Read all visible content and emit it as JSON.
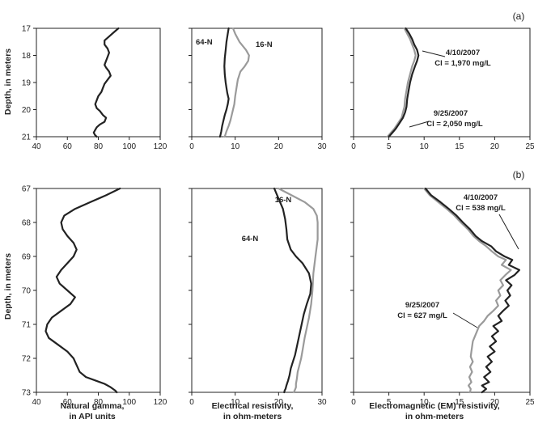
{
  "chart_data": [
    {
      "type": "line",
      "section": "(a)",
      "ylabel": "Depth, in meters",
      "ylim": [
        17,
        21
      ],
      "yticks": [
        "17",
        "18",
        "19",
        "20",
        "21"
      ],
      "xlim": [
        40,
        120
      ],
      "xticks": [
        "40",
        "60",
        "80",
        "100",
        "120"
      ],
      "series": [
        {
          "color": "#222222",
          "x": [
            93,
            90,
            87,
            84,
            84,
            86,
            87,
            86,
            85,
            84,
            85,
            87,
            88,
            86,
            84,
            83,
            82,
            80,
            79,
            78,
            79,
            81,
            83,
            85,
            84,
            81,
            79,
            78,
            77,
            78,
            79
          ],
          "y": [
            17.0,
            17.15,
            17.3,
            17.45,
            17.6,
            17.75,
            17.9,
            18.05,
            18.2,
            18.35,
            18.45,
            18.6,
            18.75,
            18.9,
            19.05,
            19.2,
            19.35,
            19.5,
            19.65,
            19.8,
            19.95,
            20.05,
            20.2,
            20.3,
            20.45,
            20.55,
            20.65,
            20.75,
            20.85,
            20.95,
            21.0
          ]
        }
      ]
    },
    {
      "type": "line",
      "section": "(a)",
      "ylim": [
        17,
        21
      ],
      "xlim": [
        0,
        30
      ],
      "xticks": [
        "0",
        "10",
        "20",
        "30"
      ],
      "series": [
        {
          "name": "64-N",
          "color": "#222222",
          "x": [
            8.5,
            8.3,
            8.0,
            7.8,
            7.6,
            7.5,
            7.6,
            7.8,
            8.0,
            8.2,
            8.5,
            8.3,
            8.0,
            7.6,
            7.3,
            7.0,
            6.8,
            6.6,
            6.5
          ],
          "y": [
            17.0,
            17.2,
            17.5,
            17.8,
            18.1,
            18.4,
            18.7,
            19.0,
            19.2,
            19.4,
            19.6,
            19.8,
            20.0,
            20.2,
            20.4,
            20.6,
            20.8,
            20.95,
            21.0
          ]
        },
        {
          "name": "16-N",
          "color": "#9a9a9a",
          "x": [
            9.5,
            10.0,
            11.0,
            12.5,
            13.2,
            13.0,
            12.2,
            11.2,
            10.6,
            10.3,
            10.0,
            9.8,
            9.5,
            9.2,
            8.9,
            8.5,
            8.0,
            7.7,
            7.5
          ],
          "y": [
            17.0,
            17.2,
            17.5,
            17.8,
            18.0,
            18.2,
            18.4,
            18.6,
            18.9,
            19.2,
            19.5,
            19.8,
            20.0,
            20.2,
            20.4,
            20.6,
            20.8,
            20.95,
            21.0
          ]
        }
      ]
    },
    {
      "type": "line",
      "section": "(a)",
      "ylim": [
        17,
        21
      ],
      "xlim": [
        0,
        25
      ],
      "xticks": [
        "0",
        "5",
        "10",
        "15",
        "20",
        "25"
      ],
      "series": [
        {
          "name": "4/10/2007",
          "color": "#222222",
          "x": [
            7.4,
            7.9,
            8.3,
            8.6,
            9.0,
            9.2,
            9.0,
            8.7,
            8.3,
            8.0,
            7.8,
            7.6,
            7.5,
            7.3,
            7.0,
            6.5,
            6.0,
            5.5,
            5.0
          ],
          "y": [
            17.0,
            17.2,
            17.4,
            17.6,
            17.8,
            18.0,
            18.2,
            18.4,
            18.7,
            19.0,
            19.3,
            19.6,
            19.9,
            20.1,
            20.3,
            20.5,
            20.7,
            20.85,
            21.0
          ]
        },
        {
          "name": "9/25/2007",
          "color": "#9a9a9a",
          "x": [
            7.2,
            7.6,
            8.0,
            8.3,
            8.6,
            8.8,
            8.6,
            8.3,
            8.0,
            7.7,
            7.5,
            7.3,
            7.2,
            7.0,
            6.8,
            6.3,
            5.8,
            5.3,
            4.8
          ],
          "y": [
            17.0,
            17.2,
            17.4,
            17.6,
            17.8,
            18.0,
            18.2,
            18.4,
            18.7,
            19.0,
            19.3,
            19.6,
            19.9,
            20.1,
            20.3,
            20.5,
            20.7,
            20.85,
            21.0
          ]
        }
      ]
    },
    {
      "type": "line",
      "section": "(b)",
      "ylabel": "Depth, in meters",
      "ylim": [
        67,
        73
      ],
      "yticks": [
        "67",
        "68",
        "69",
        "70",
        "71",
        "72",
        "73"
      ],
      "xlim": [
        40,
        120
      ],
      "xticks": [
        "40",
        "60",
        "80",
        "100",
        "120"
      ],
      "xlabel": "Natural gamma, in API units",
      "series": [
        {
          "color": "#222222",
          "x": [
            94,
            85,
            75,
            65,
            58,
            56,
            57,
            60,
            64,
            66,
            64,
            60,
            56,
            53,
            55,
            60,
            65,
            62,
            56,
            50,
            47,
            46,
            48,
            54,
            60,
            64,
            66,
            68,
            72,
            78,
            84,
            88,
            91,
            92
          ],
          "y": [
            67.0,
            67.2,
            67.4,
            67.6,
            67.8,
            68.0,
            68.2,
            68.4,
            68.6,
            68.8,
            69.0,
            69.2,
            69.4,
            69.6,
            69.8,
            70.0,
            70.2,
            70.4,
            70.6,
            70.8,
            71.0,
            71.2,
            71.4,
            71.6,
            71.8,
            72.0,
            72.2,
            72.4,
            72.55,
            72.65,
            72.75,
            72.85,
            72.95,
            73.0
          ]
        }
      ]
    },
    {
      "type": "line",
      "section": "(b)",
      "ylim": [
        67,
        73
      ],
      "xlim": [
        0,
        30
      ],
      "xticks": [
        "0",
        "10",
        "20",
        "30"
      ],
      "xlabel": "Electrical resistivity, in ohm-meters",
      "series": [
        {
          "name": "64-N",
          "color": "#222222",
          "x": [
            19,
            20,
            21,
            21.5,
            21.8,
            22,
            22.8,
            24,
            25.5,
            27,
            27.5,
            27.3,
            26.5,
            25.8,
            25.3,
            24.8,
            24.3,
            23.8,
            23.3,
            22.8,
            22.5,
            22.2,
            21.8,
            21.6,
            21.4,
            21.3
          ],
          "y": [
            67.0,
            67.3,
            67.6,
            67.9,
            68.2,
            68.5,
            68.8,
            69.0,
            69.2,
            69.5,
            69.8,
            70.1,
            70.4,
            70.7,
            71.0,
            71.3,
            71.6,
            71.9,
            72.1,
            72.3,
            72.5,
            72.65,
            72.8,
            72.9,
            72.95,
            73.0
          ]
        },
        {
          "name": "16-N",
          "color": "#9a9a9a",
          "x": [
            20,
            23,
            26,
            28,
            28.8,
            29,
            29,
            28.5,
            28,
            27.8,
            27.5,
            27,
            26.5,
            26,
            25.6,
            25.2,
            24.8,
            24.4,
            24.2,
            24,
            24,
            23.8,
            23.6,
            23.5
          ],
          "y": [
            67.0,
            67.2,
            67.4,
            67.6,
            67.8,
            68.0,
            68.5,
            69.0,
            69.5,
            70.0,
            70.4,
            70.8,
            71.1,
            71.4,
            71.7,
            72.0,
            72.2,
            72.4,
            72.6,
            72.75,
            72.85,
            72.92,
            72.97,
            73.0
          ]
        }
      ]
    },
    {
      "type": "line",
      "section": "(b)",
      "ylim": [
        67,
        73
      ],
      "xlim": [
        0,
        25
      ],
      "xticks": [
        "0",
        "5",
        "10",
        "15",
        "20",
        "25"
      ],
      "xlabel": "Electromagnetic (EM) resistivity, in ohm-meters",
      "series": [
        {
          "name": "4/10/2007",
          "color": "#222222",
          "x": [
            10.2,
            11.0,
            12.3,
            13.5,
            14.6,
            15.5,
            16.5,
            17.3,
            18.2,
            19.5,
            20.2,
            21.4,
            22.5,
            22.0,
            23.5,
            22.8,
            21.6,
            22.4,
            21.8,
            22.2,
            21.5,
            22.0,
            21.2,
            20.5,
            21.0,
            19.8,
            20.5,
            19.6,
            20.2,
            19.3,
            20.0,
            19.0,
            19.6,
            18.8,
            19.4,
            18.5,
            19.2,
            18.2,
            18.8,
            18.2
          ],
          "y": [
            67.0,
            67.2,
            67.4,
            67.6,
            67.8,
            68.0,
            68.2,
            68.4,
            68.55,
            68.7,
            68.85,
            69.0,
            69.1,
            69.25,
            69.4,
            69.55,
            69.7,
            69.85,
            70.0,
            70.15,
            70.3,
            70.45,
            70.6,
            70.75,
            70.9,
            71.05,
            71.2,
            71.35,
            71.5,
            71.65,
            71.8,
            71.95,
            72.1,
            72.25,
            72.4,
            72.55,
            72.7,
            72.8,
            72.9,
            73.0
          ]
        },
        {
          "name": "9/25/2007",
          "color": "#9a9a9a",
          "x": [
            10.0,
            10.8,
            12.0,
            13.2,
            14.3,
            15.2,
            16.2,
            17.0,
            17.8,
            18.8,
            19.6,
            20.5,
            21.6,
            21.0,
            22.3,
            21.5,
            20.8,
            21.2,
            20.5,
            20.8,
            20.2,
            20.5,
            19.8,
            19.0,
            18.5,
            17.8,
            17.5,
            17.2,
            16.9,
            16.8,
            16.7,
            16.6,
            16.9,
            16.5,
            16.8,
            16.4,
            16.7,
            16.3,
            16.6,
            16.5
          ],
          "y": [
            67.0,
            67.2,
            67.4,
            67.6,
            67.8,
            68.0,
            68.2,
            68.4,
            68.55,
            68.7,
            68.85,
            69.0,
            69.1,
            69.25,
            69.4,
            69.55,
            69.7,
            69.85,
            70.0,
            70.15,
            70.3,
            70.45,
            70.6,
            70.75,
            70.9,
            71.05,
            71.2,
            71.35,
            71.5,
            71.65,
            71.8,
            71.95,
            72.1,
            72.25,
            72.4,
            72.55,
            72.7,
            72.8,
            72.9,
            73.0
          ]
        }
      ]
    }
  ],
  "panel_labels": {
    "a": "(a)",
    "b": "(b)"
  },
  "annotations": {
    "a_res_64n": "64-N",
    "a_res_16n": "16-N",
    "a_em_date1": "4/10/2007",
    "a_em_cl1": "Cl = 1,970 mg/L",
    "a_em_date2": "9/25/2007",
    "a_em_cl2": "Cl = 2,050 mg/L",
    "b_res_16n": "16-N",
    "b_res_64n": "64-N",
    "b_em_date1": "4/10/2007",
    "b_em_cl1": "Cl = 538 mg/L",
    "b_em_date2": "9/25/2007",
    "b_em_cl2": "Cl = 627 mg/L"
  },
  "xlabels": {
    "gamma_1": "Natural gamma,",
    "gamma_2": "in API units",
    "res_1": "Electrical resistivity,",
    "res_2": "in ohm-meters",
    "em_1": "Electromagnetic (EM) resistivity,",
    "em_2": "in ohm-meters"
  }
}
